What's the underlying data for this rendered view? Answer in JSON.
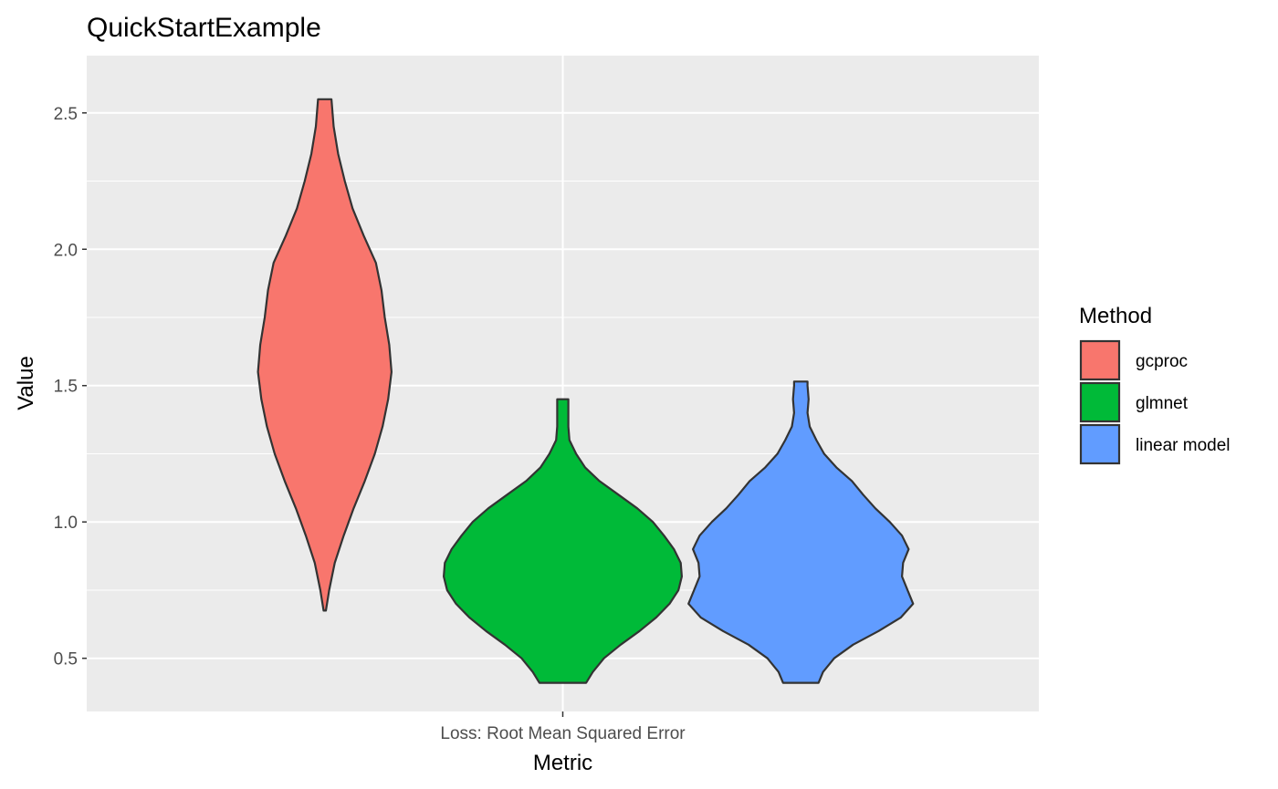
{
  "chart_data": {
    "type": "violin",
    "title": "QuickStartExample",
    "xlabel": "Metric",
    "ylabel": "Value",
    "categories": [
      "Loss: Root Mean Squared Error"
    ],
    "ylim": [
      0.305,
      2.71
    ],
    "yticks": [
      0.5,
      1.0,
      1.5,
      2.0,
      2.5
    ],
    "ytick_labels": [
      "0.5",
      "1.0",
      "1.5",
      "2.0",
      "2.5"
    ],
    "grid": true,
    "legend": {
      "title": "Method",
      "placement": "right",
      "entries": [
        "gcproc",
        "glmnet",
        "linear model"
      ]
    },
    "series": [
      {
        "name": "gcproc",
        "color": "#F8766D",
        "min": 0.675,
        "max": 2.55,
        "density_profile": [
          [
            0.675,
            0.01
          ],
          [
            0.75,
            0.04
          ],
          [
            0.85,
            0.09
          ],
          [
            0.95,
            0.17
          ],
          [
            1.05,
            0.26
          ],
          [
            1.15,
            0.36
          ],
          [
            1.25,
            0.45
          ],
          [
            1.35,
            0.52
          ],
          [
            1.45,
            0.57
          ],
          [
            1.55,
            0.6
          ],
          [
            1.65,
            0.58
          ],
          [
            1.75,
            0.54
          ],
          [
            1.85,
            0.51
          ],
          [
            1.95,
            0.46
          ],
          [
            2.05,
            0.35
          ],
          [
            2.15,
            0.25
          ],
          [
            2.25,
            0.18
          ],
          [
            2.35,
            0.12
          ],
          [
            2.45,
            0.08
          ],
          [
            2.55,
            0.06
          ]
        ]
      },
      {
        "name": "glmnet",
        "color": "#00BA38",
        "min": 0.41,
        "max": 1.45,
        "density_profile": [
          [
            0.41,
            0.21
          ],
          [
            0.45,
            0.27
          ],
          [
            0.5,
            0.37
          ],
          [
            0.55,
            0.52
          ],
          [
            0.6,
            0.69
          ],
          [
            0.65,
            0.84
          ],
          [
            0.7,
            0.96
          ],
          [
            0.75,
            1.04
          ],
          [
            0.8,
            1.07
          ],
          [
            0.85,
            1.06
          ],
          [
            0.9,
            1.0
          ],
          [
            0.95,
            0.91
          ],
          [
            1.0,
            0.81
          ],
          [
            1.05,
            0.67
          ],
          [
            1.1,
            0.5
          ],
          [
            1.15,
            0.33
          ],
          [
            1.2,
            0.2
          ],
          [
            1.25,
            0.12
          ],
          [
            1.3,
            0.06
          ],
          [
            1.35,
            0.05
          ],
          [
            1.4,
            0.05
          ],
          [
            1.45,
            0.05
          ]
        ]
      },
      {
        "name": "linear model",
        "color": "#619CFF",
        "min": 0.41,
        "max": 1.515,
        "density_profile": [
          [
            0.41,
            0.16
          ],
          [
            0.45,
            0.2
          ],
          [
            0.5,
            0.3
          ],
          [
            0.55,
            0.47
          ],
          [
            0.6,
            0.7
          ],
          [
            0.65,
            0.9
          ],
          [
            0.7,
            1.01
          ],
          [
            0.75,
            0.96
          ],
          [
            0.8,
            0.91
          ],
          [
            0.85,
            0.92
          ],
          [
            0.9,
            0.97
          ],
          [
            0.95,
            0.91
          ],
          [
            1.0,
            0.8
          ],
          [
            1.05,
            0.67
          ],
          [
            1.1,
            0.56
          ],
          [
            1.15,
            0.46
          ],
          [
            1.2,
            0.32
          ],
          [
            1.25,
            0.21
          ],
          [
            1.3,
            0.14
          ],
          [
            1.35,
            0.08
          ],
          [
            1.4,
            0.06
          ],
          [
            1.45,
            0.07
          ],
          [
            1.5,
            0.06
          ],
          [
            1.515,
            0.06
          ]
        ]
      }
    ]
  },
  "colors": {
    "panel_background": "#EBEBEB",
    "grid_major": "#FFFFFF",
    "axis_text": "#4D4D4D",
    "outline": "#333333"
  }
}
